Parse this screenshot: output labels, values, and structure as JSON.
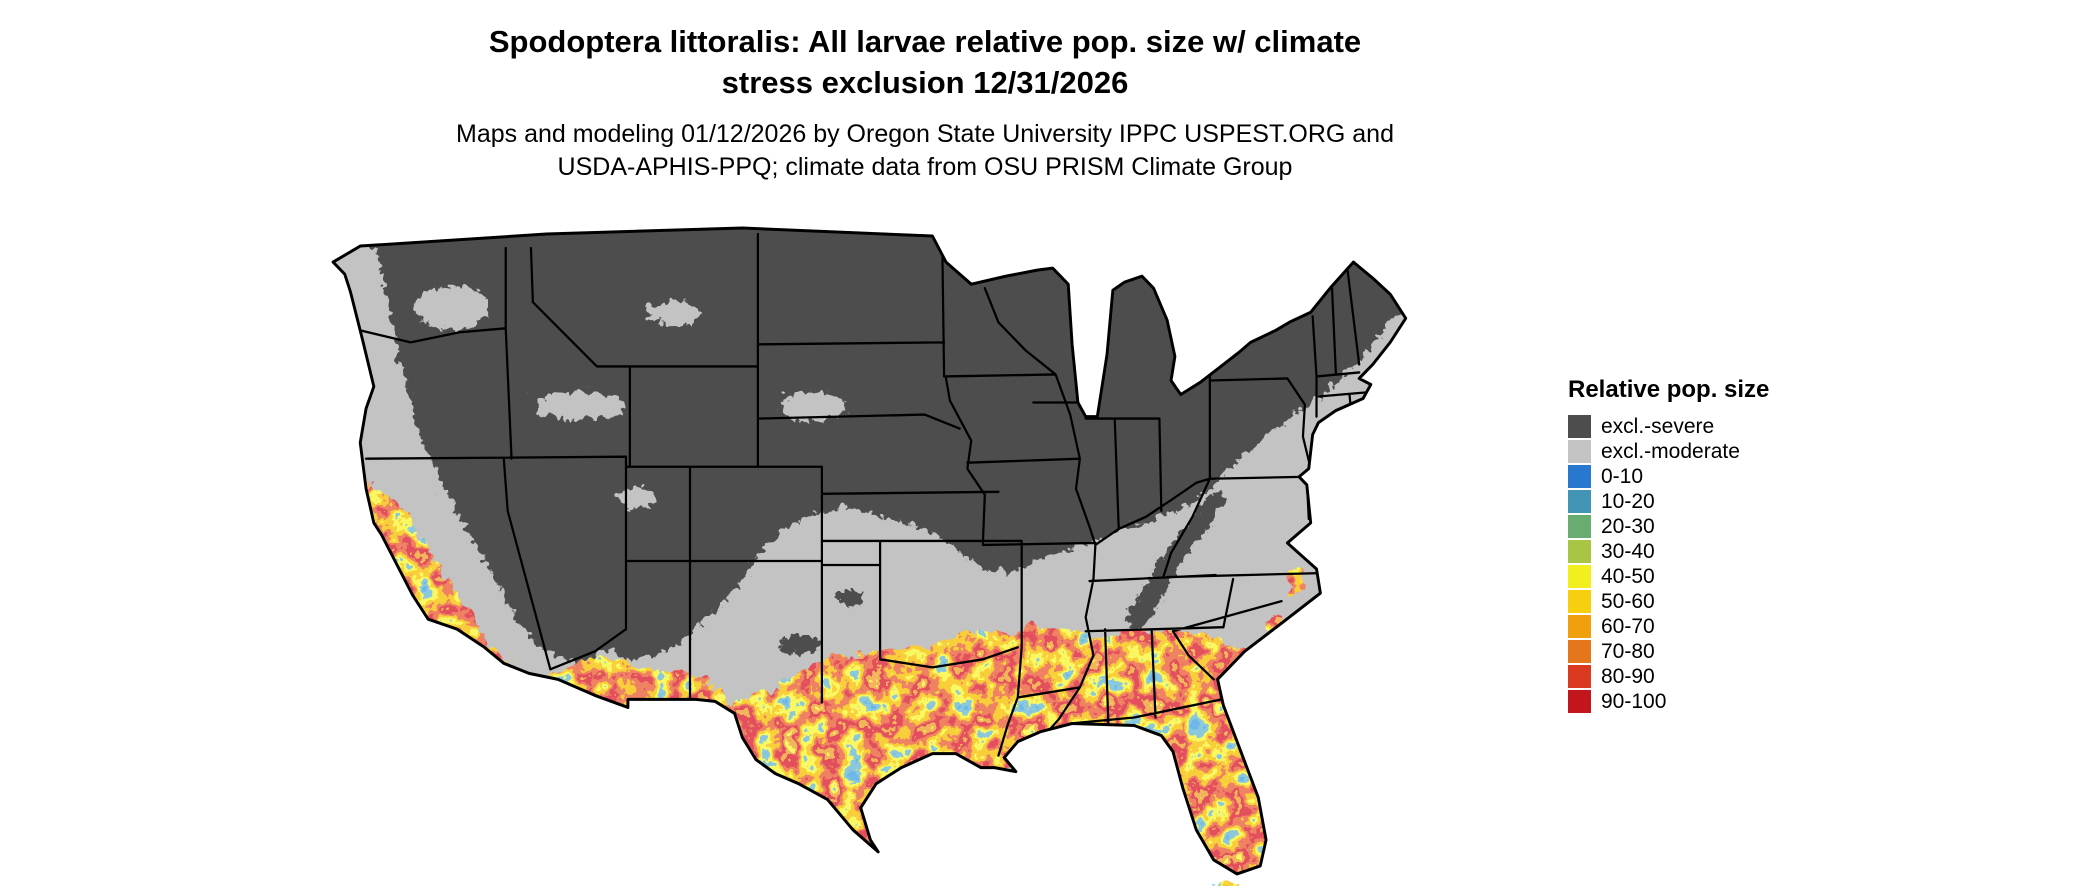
{
  "header": {
    "title_line1": "Spodoptera littoralis: All larvae relative pop. size w/ climate",
    "title_line2": "stress exclusion 12/31/2026",
    "subtitle_line1": "Maps and modeling 01/12/2026 by Oregon State University IPPC USPEST.ORG and",
    "subtitle_line2": "USDA-APHIS-PPQ; climate data from OSU PRISM Climate Group"
  },
  "legend": {
    "title": "Relative pop. size",
    "items": [
      {
        "label": "excl.-severe",
        "color": "#4d4d4d"
      },
      {
        "label": "excl.-moderate",
        "color": "#c3c3c3"
      },
      {
        "label": "0-10",
        "color": "#2878d0"
      },
      {
        "label": "10-20",
        "color": "#4295b5"
      },
      {
        "label": "20-30",
        "color": "#69ac6f"
      },
      {
        "label": "30-40",
        "color": "#a8c545"
      },
      {
        "label": "40-50",
        "color": "#f2ef1f"
      },
      {
        "label": "50-60",
        "color": "#f6cf0e"
      },
      {
        "label": "60-70",
        "color": "#f0a00c"
      },
      {
        "label": "70-80",
        "color": "#e4761b"
      },
      {
        "label": "80-90",
        "color": "#d93a20"
      },
      {
        "label": "90-100",
        "color": "#c3151c"
      }
    ]
  },
  "map": {
    "description": "Continental United States relative population size map",
    "colors": {
      "excluded_severe": "#4d4d4d",
      "excluded_moderate": "#c3c3c3",
      "state_border": "#000000",
      "background": "#ffffff"
    }
  }
}
